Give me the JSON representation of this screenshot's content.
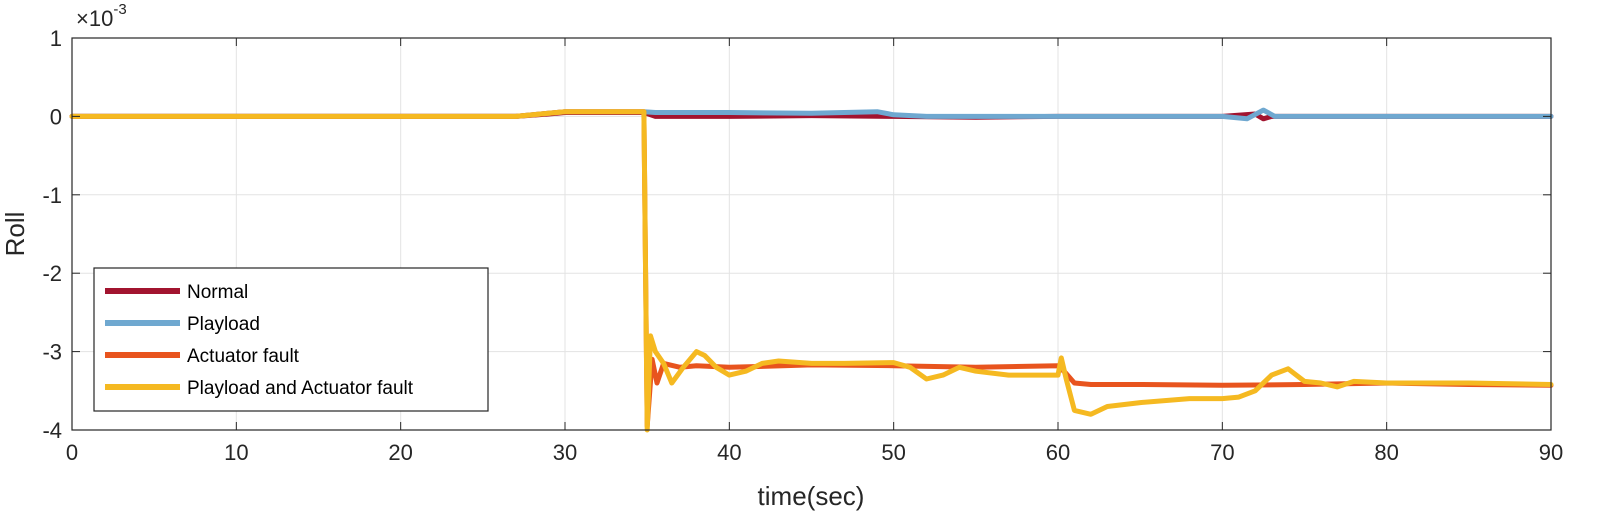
{
  "chart_data": {
    "type": "line",
    "xlabel": "time(sec)",
    "ylabel": "Roll",
    "exponent_label": "×10",
    "exponent_power": "-3",
    "xlim": [
      0,
      90
    ],
    "ylim": [
      -4,
      1
    ],
    "y_scale_factor": 0.001,
    "x_ticks": [
      0,
      10,
      20,
      30,
      40,
      50,
      60,
      70,
      80,
      90
    ],
    "x_tick_labels": [
      "0",
      "10",
      "20",
      "30",
      "40",
      "50",
      "60",
      "70",
      "80",
      "90"
    ],
    "y_ticks": [
      1,
      0,
      -1,
      -2,
      -3,
      -4
    ],
    "y_tick_labels": [
      "1",
      "0",
      "-1",
      "-2",
      "-3",
      "-4"
    ],
    "grid": true,
    "legend_position": "bottom-left",
    "series": [
      {
        "name": "Normal",
        "color": "#A2142F",
        "x": [
          0,
          10,
          20,
          27,
          29,
          30,
          34.8,
          35.5,
          40,
          45,
          50,
          55,
          60,
          65,
          70,
          72,
          72.5,
          73,
          75,
          80,
          85,
          90
        ],
        "y": [
          0,
          0,
          0,
          0,
          0.03,
          0.05,
          0.05,
          0,
          0,
          0.01,
          0,
          -0.01,
          0,
          0,
          0,
          0.03,
          -0.03,
          0,
          0,
          0,
          0,
          0
        ]
      },
      {
        "name": "Playload",
        "color": "#6FA8D0",
        "x": [
          0,
          10,
          20,
          27,
          29,
          30,
          34.8,
          35.5,
          40,
          45,
          49,
          50,
          52,
          55,
          60,
          65,
          70,
          71.5,
          72.5,
          73.2,
          74,
          80,
          85,
          90
        ],
        "y": [
          0,
          0,
          0,
          0,
          0.04,
          0.06,
          0.06,
          0.05,
          0.05,
          0.04,
          0.06,
          0.02,
          0,
          0,
          0,
          0,
          0,
          -0.03,
          0.08,
          0,
          0,
          0,
          0,
          0
        ]
      },
      {
        "name": "Actuator fault",
        "color": "#E8541E",
        "x": [
          0,
          10,
          20,
          27,
          29,
          30,
          34.8,
          35,
          35.3,
          35.6,
          36,
          37,
          38,
          40,
          45,
          50,
          55,
          60,
          60.5,
          61,
          62,
          65,
          70,
          75,
          80,
          85,
          90
        ],
        "y": [
          0,
          0,
          0,
          0,
          0.04,
          0.06,
          0.06,
          -3.95,
          -3.1,
          -3.4,
          -3.15,
          -3.2,
          -3.18,
          -3.2,
          -3.17,
          -3.18,
          -3.2,
          -3.18,
          -3.28,
          -3.4,
          -3.42,
          -3.42,
          -3.43,
          -3.42,
          -3.4,
          -3.42,
          -3.43
        ]
      },
      {
        "name": "Playload and Actuator fault",
        "color": "#F5B921",
        "x": [
          0,
          10,
          20,
          27,
          29,
          30,
          34.8,
          35,
          35.2,
          35.5,
          36,
          36.5,
          37.2,
          38,
          38.5,
          39.2,
          40,
          41,
          42,
          43,
          45,
          47,
          50,
          51,
          52,
          53,
          54,
          55,
          57,
          60,
          60.2,
          60.5,
          61,
          62,
          63,
          65,
          68,
          70,
          71,
          72,
          73,
          74,
          75,
          76,
          77,
          78,
          80,
          85,
          90
        ],
        "y": [
          0,
          0,
          0,
          0,
          0.04,
          0.06,
          0.06,
          -4.0,
          -2.8,
          -3.0,
          -3.15,
          -3.4,
          -3.2,
          -3.0,
          -3.05,
          -3.2,
          -3.3,
          -3.25,
          -3.15,
          -3.12,
          -3.15,
          -3.15,
          -3.14,
          -3.2,
          -3.35,
          -3.3,
          -3.2,
          -3.25,
          -3.3,
          -3.3,
          -3.08,
          -3.35,
          -3.75,
          -3.8,
          -3.7,
          -3.65,
          -3.6,
          -3.6,
          -3.58,
          -3.5,
          -3.3,
          -3.22,
          -3.38,
          -3.4,
          -3.45,
          -3.38,
          -3.4,
          -3.4,
          -3.42
        ]
      }
    ]
  }
}
